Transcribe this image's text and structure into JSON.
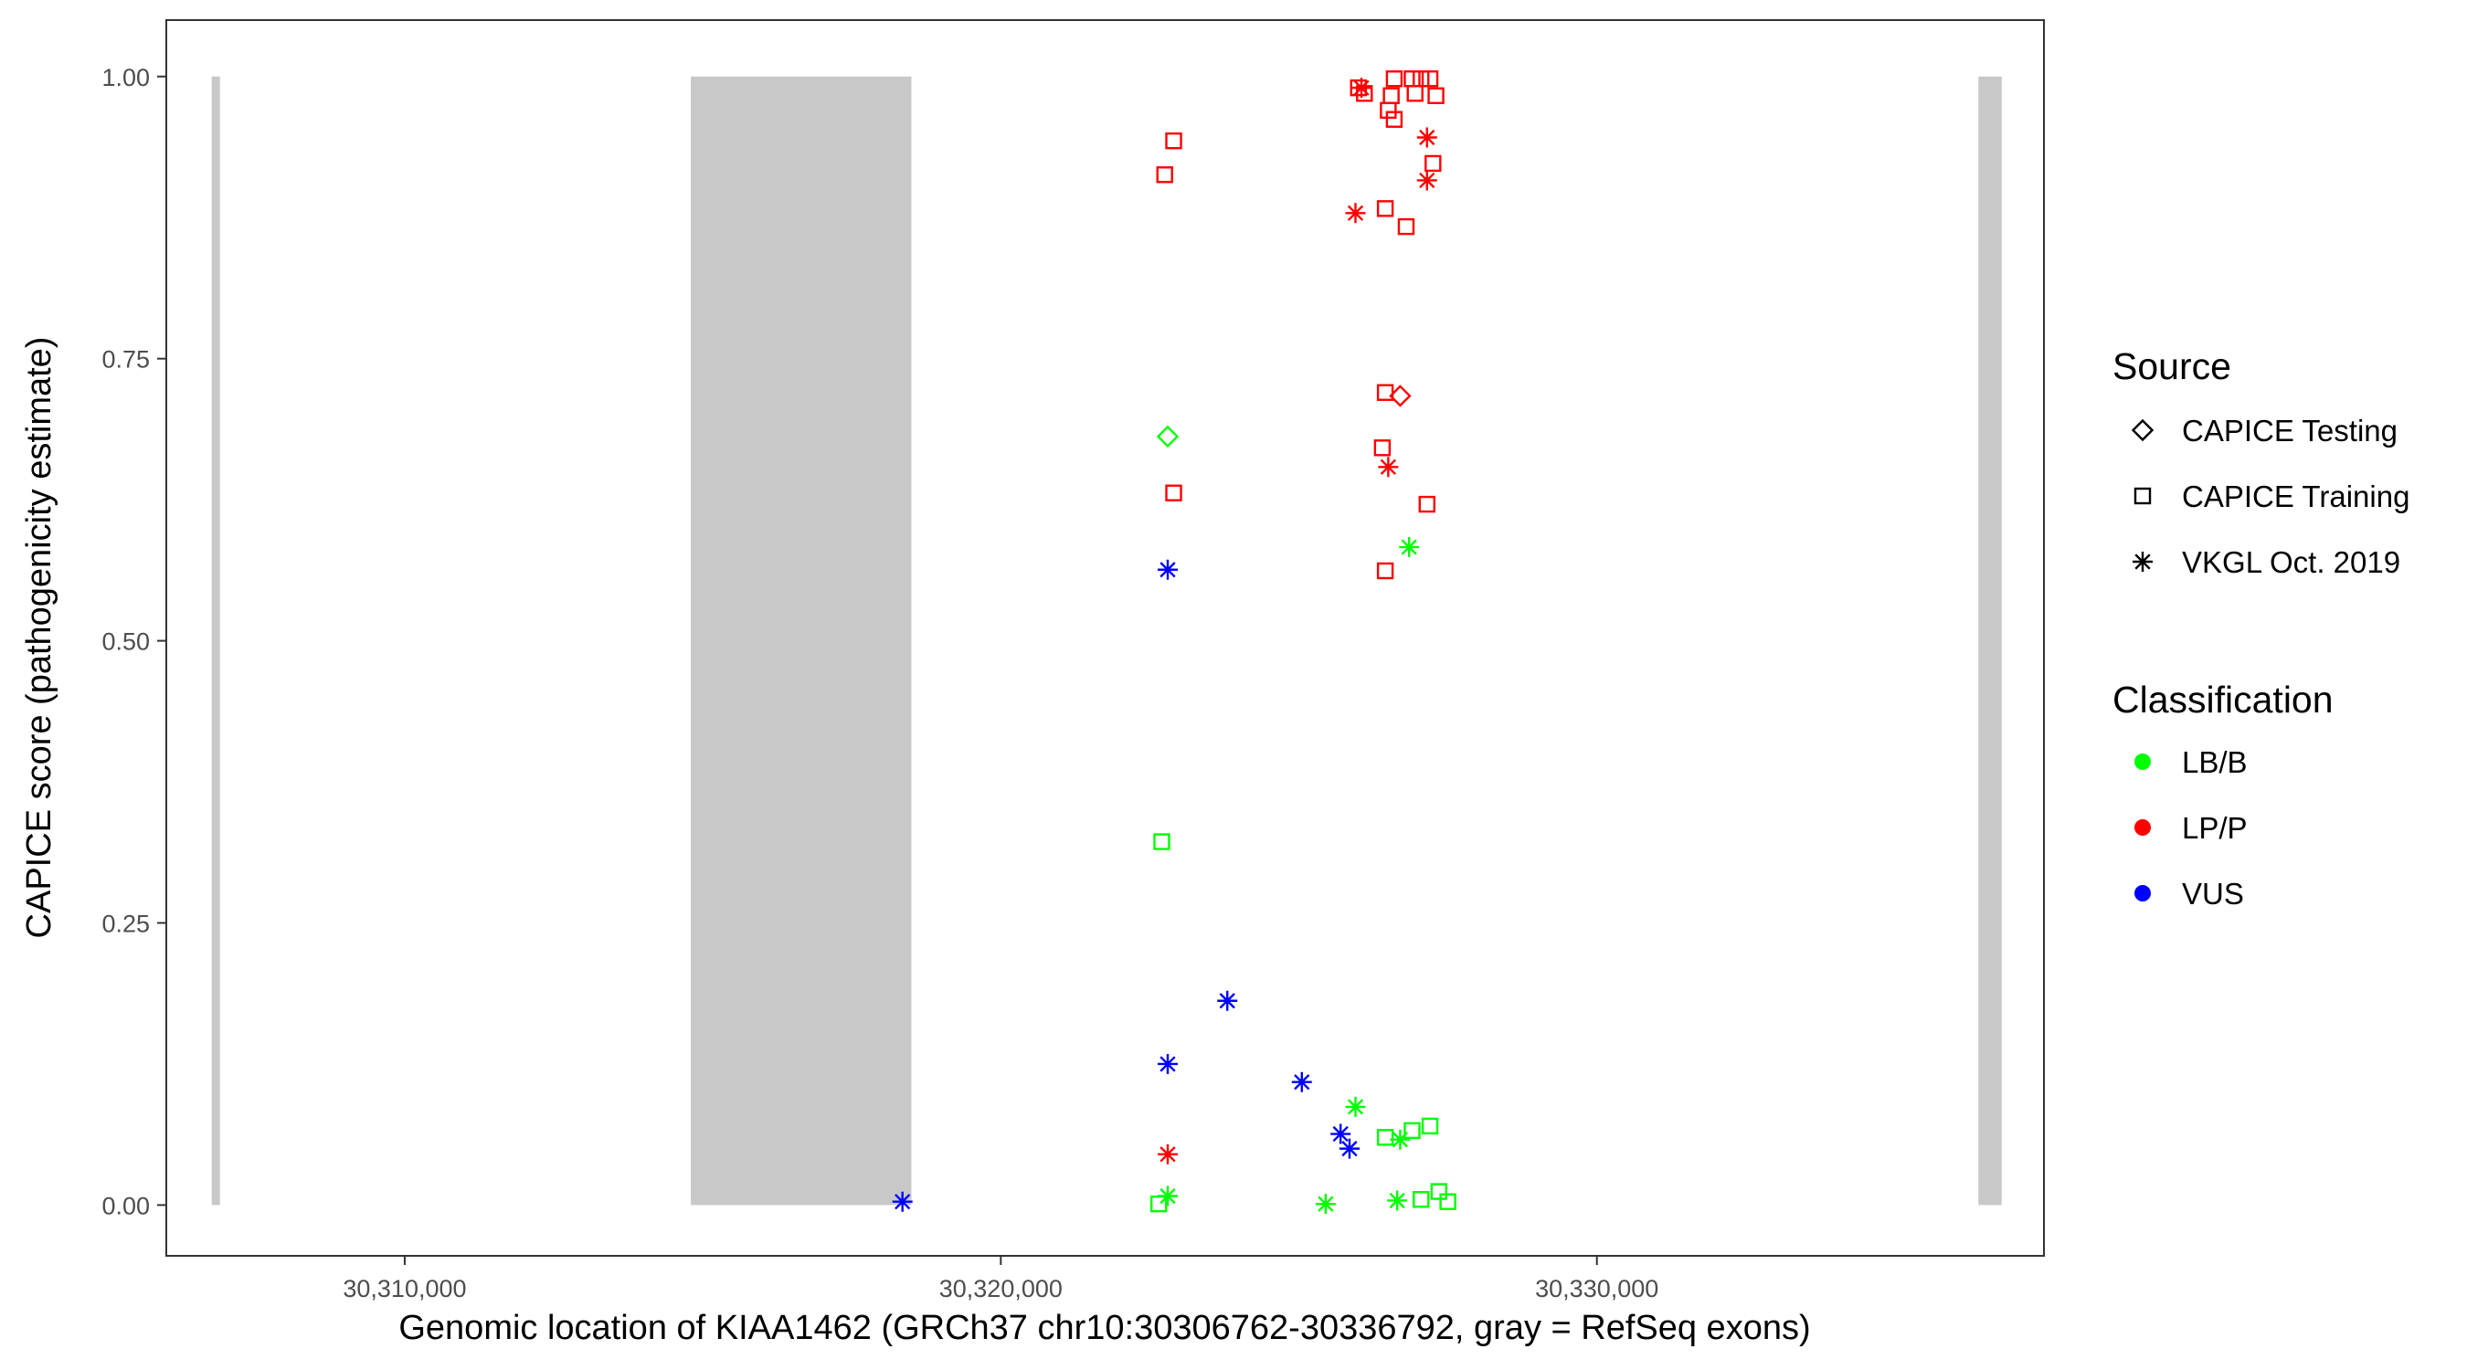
{
  "chart_data": {
    "type": "scatter",
    "xlabel": "Genomic location of KIAA1462 (GRCh37 chr10:30306762-30336792, gray = RefSeq exons)",
    "ylabel": "CAPICE score (pathogenicity estimate)",
    "xlim": [
      30306000,
      30337500
    ],
    "ylim": [
      -0.045,
      1.05
    ],
    "x_ticks": [
      {
        "value": 30310000,
        "label": "30,310,000"
      },
      {
        "value": 30320000,
        "label": "30,320,000"
      },
      {
        "value": 30330000,
        "label": "30,330,000"
      }
    ],
    "y_ticks": [
      {
        "value": 0.0,
        "label": "0.00"
      },
      {
        "value": 0.25,
        "label": "0.25"
      },
      {
        "value": 0.5,
        "label": "0.50"
      },
      {
        "value": 0.75,
        "label": "0.75"
      },
      {
        "value": 1.0,
        "label": "1.00"
      }
    ],
    "exons": [
      {
        "start": 30306762,
        "end": 30306900
      },
      {
        "start": 30314800,
        "end": 30318500
      },
      {
        "start": 30336400,
        "end": 30336792
      }
    ],
    "legend_placement": "right",
    "legend": {
      "source": {
        "title": "Source",
        "items": [
          {
            "label": "CAPICE Testing",
            "shape": "diamond"
          },
          {
            "label": "CAPICE Training",
            "shape": "square"
          },
          {
            "label": "VKGL Oct. 2019",
            "shape": "asterisk"
          }
        ]
      },
      "classification": {
        "title": "Classification",
        "items": [
          {
            "label": "LB/B",
            "color": "#00ff00"
          },
          {
            "label": "LP/P",
            "color": "#ff0000"
          },
          {
            "label": "VUS",
            "color": "#0000ff"
          }
        ]
      }
    },
    "colors": {
      "LB/B": "#00ff00",
      "LP/P": "#ff0000",
      "VUS": "#0000ff",
      "exon": "#c8c8c8"
    },
    "points": [
      {
        "x": 30326000,
        "y": 0.99,
        "source": "CAPICE Training",
        "cls": "LP/P"
      },
      {
        "x": 30326600,
        "y": 0.998,
        "source": "CAPICE Training",
        "cls": "LP/P"
      },
      {
        "x": 30326900,
        "y": 0.998,
        "source": "CAPICE Training",
        "cls": "LP/P"
      },
      {
        "x": 30327050,
        "y": 0.998,
        "source": "CAPICE Training",
        "cls": "LP/P"
      },
      {
        "x": 30327200,
        "y": 0.998,
        "source": "CAPICE Training",
        "cls": "LP/P"
      },
      {
        "x": 30326100,
        "y": 0.985,
        "source": "CAPICE Training",
        "cls": "LP/P"
      },
      {
        "x": 30326550,
        "y": 0.983,
        "source": "CAPICE Training",
        "cls": "LP/P"
      },
      {
        "x": 30326950,
        "y": 0.985,
        "source": "CAPICE Training",
        "cls": "LP/P"
      },
      {
        "x": 30327300,
        "y": 0.983,
        "source": "CAPICE Training",
        "cls": "LP/P"
      },
      {
        "x": 30326500,
        "y": 0.97,
        "source": "CAPICE Training",
        "cls": "LP/P"
      },
      {
        "x": 30326600,
        "y": 0.962,
        "source": "CAPICE Training",
        "cls": "LP/P"
      },
      {
        "x": 30322900,
        "y": 0.943,
        "source": "CAPICE Training",
        "cls": "LP/P"
      },
      {
        "x": 30322750,
        "y": 0.913,
        "source": "CAPICE Training",
        "cls": "LP/P"
      },
      {
        "x": 30327250,
        "y": 0.923,
        "source": "CAPICE Training",
        "cls": "LP/P"
      },
      {
        "x": 30326450,
        "y": 0.883,
        "source": "CAPICE Training",
        "cls": "LP/P"
      },
      {
        "x": 30326800,
        "y": 0.867,
        "source": "CAPICE Training",
        "cls": "LP/P"
      },
      {
        "x": 30326450,
        "y": 0.72,
        "source": "CAPICE Training",
        "cls": "LP/P"
      },
      {
        "x": 30326400,
        "y": 0.671,
        "source": "CAPICE Training",
        "cls": "LP/P"
      },
      {
        "x": 30322900,
        "y": 0.631,
        "source": "CAPICE Training",
        "cls": "LP/P"
      },
      {
        "x": 30327150,
        "y": 0.621,
        "source": "CAPICE Training",
        "cls": "LP/P"
      },
      {
        "x": 30326450,
        "y": 0.562,
        "source": "CAPICE Training",
        "cls": "LP/P"
      },
      {
        "x": 30322700,
        "y": 0.322,
        "source": "CAPICE Training",
        "cls": "LB/B"
      },
      {
        "x": 30327200,
        "y": 0.07,
        "source": "CAPICE Training",
        "cls": "LB/B"
      },
      {
        "x": 30326900,
        "y": 0.066,
        "source": "CAPICE Training",
        "cls": "LB/B"
      },
      {
        "x": 30326450,
        "y": 0.06,
        "source": "CAPICE Training",
        "cls": "LB/B"
      },
      {
        "x": 30327350,
        "y": 0.012,
        "source": "CAPICE Training",
        "cls": "LB/B"
      },
      {
        "x": 30327050,
        "y": 0.005,
        "source": "CAPICE Training",
        "cls": "LB/B"
      },
      {
        "x": 30327500,
        "y": 0.003,
        "source": "CAPICE Training",
        "cls": "LB/B"
      },
      {
        "x": 30322650,
        "y": 0.001,
        "source": "CAPICE Training",
        "cls": "LB/B"
      },
      {
        "x": 30326700,
        "y": 0.717,
        "source": "CAPICE Testing",
        "cls": "LP/P"
      },
      {
        "x": 30322800,
        "y": 0.681,
        "source": "CAPICE Testing",
        "cls": "LB/B"
      },
      {
        "x": 30326050,
        "y": 0.99,
        "source": "VKGL Oct. 2019",
        "cls": "LP/P"
      },
      {
        "x": 30327150,
        "y": 0.946,
        "source": "VKGL Oct. 2019",
        "cls": "LP/P"
      },
      {
        "x": 30327150,
        "y": 0.908,
        "source": "VKGL Oct. 2019",
        "cls": "LP/P"
      },
      {
        "x": 30325950,
        "y": 0.879,
        "source": "VKGL Oct. 2019",
        "cls": "LP/P"
      },
      {
        "x": 30326500,
        "y": 0.654,
        "source": "VKGL Oct. 2019",
        "cls": "LP/P"
      },
      {
        "x": 30322800,
        "y": 0.045,
        "source": "VKGL Oct. 2019",
        "cls": "LP/P"
      },
      {
        "x": 30326850,
        "y": 0.583,
        "source": "VKGL Oct. 2019",
        "cls": "LB/B"
      },
      {
        "x": 30325950,
        "y": 0.087,
        "source": "VKGL Oct. 2019",
        "cls": "LB/B"
      },
      {
        "x": 30326700,
        "y": 0.058,
        "source": "VKGL Oct. 2019",
        "cls": "LB/B"
      },
      {
        "x": 30322800,
        "y": 0.008,
        "source": "VKGL Oct. 2019",
        "cls": "LB/B"
      },
      {
        "x": 30325450,
        "y": 0.001,
        "source": "VKGL Oct. 2019",
        "cls": "LB/B"
      },
      {
        "x": 30326650,
        "y": 0.004,
        "source": "VKGL Oct. 2019",
        "cls": "LB/B"
      },
      {
        "x": 30322800,
        "y": 0.563,
        "source": "VKGL Oct. 2019",
        "cls": "VUS"
      },
      {
        "x": 30323800,
        "y": 0.181,
        "source": "VKGL Oct. 2019",
        "cls": "VUS"
      },
      {
        "x": 30322800,
        "y": 0.125,
        "source": "VKGL Oct. 2019",
        "cls": "VUS"
      },
      {
        "x": 30325050,
        "y": 0.109,
        "source": "VKGL Oct. 2019",
        "cls": "VUS"
      },
      {
        "x": 30325700,
        "y": 0.063,
        "source": "VKGL Oct. 2019",
        "cls": "VUS"
      },
      {
        "x": 30325850,
        "y": 0.05,
        "source": "VKGL Oct. 2019",
        "cls": "VUS"
      },
      {
        "x": 30318350,
        "y": 0.003,
        "source": "VKGL Oct. 2019",
        "cls": "VUS"
      }
    ]
  }
}
